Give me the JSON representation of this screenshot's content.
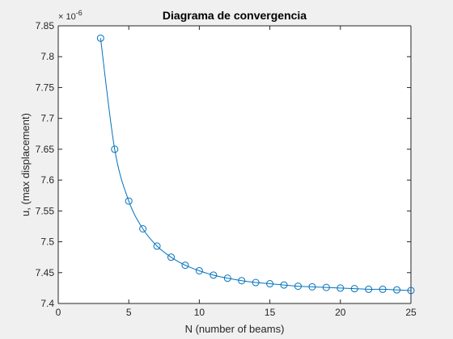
{
  "chart_data": {
    "type": "line",
    "title": "Diagrama de convergencia",
    "xlabel": "N (number of beams)",
    "ylabel": "u, (max displacement)",
    "y_exponent_base": "× 10",
    "y_exponent_power": "-6",
    "xlim": [
      0,
      25
    ],
    "ylim": [
      7.4,
      7.85
    ],
    "xticks": [
      0,
      5,
      10,
      15,
      20,
      25
    ],
    "yticks": [
      7.4,
      7.45,
      7.5,
      7.55,
      7.6,
      7.65,
      7.7,
      7.75,
      7.8,
      7.85
    ],
    "grid": false,
    "marker": "circle",
    "line_color": "#0072BD",
    "series": [
      {
        "x": [
          3,
          4,
          5,
          6,
          7,
          8,
          9,
          10,
          11,
          12,
          13,
          14,
          15,
          16,
          17,
          18,
          19,
          20,
          21,
          22,
          23,
          24,
          25
        ],
        "values": [
          7.83,
          7.65,
          7.566,
          7.521,
          7.493,
          7.475,
          7.462,
          7.453,
          7.446,
          7.441,
          7.437,
          7.434,
          7.432,
          7.43,
          7.428,
          7.427,
          7.426,
          7.425,
          7.424,
          7.423,
          7.423,
          7.422,
          7.421
        ]
      }
    ]
  }
}
